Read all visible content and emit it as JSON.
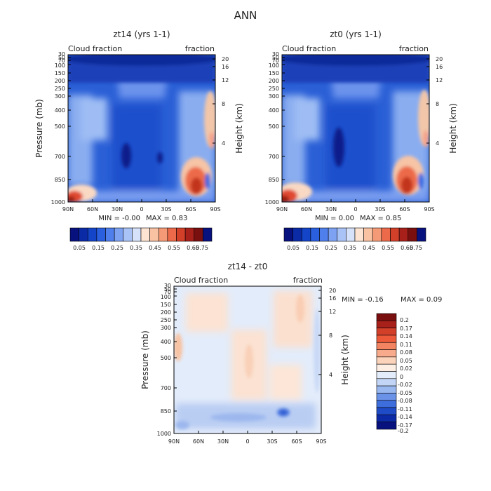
{
  "figure": {
    "title": "ANN"
  },
  "chart_data": [
    {
      "type": "heatmap",
      "title": "zt14 (yrs 1-1)",
      "left_label": "Cloud fraction",
      "right_label": "fraction",
      "ylabel": "Pressure (mb)",
      "y2label": "Height (km)",
      "x_ticks": [
        "90N",
        "60N",
        "30N",
        "0",
        "30S",
        "60S",
        "90S"
      ],
      "y_ticks": [
        "30",
        "50",
        "70",
        "100",
        "150",
        "200",
        "250",
        "300",
        "400",
        "500",
        "700",
        "850",
        "1000"
      ],
      "y2_ticks": [
        "20",
        "16",
        "12",
        "8",
        "4"
      ],
      "min_text": "MIN = -0.00",
      "max_text": "MAX = 0.83",
      "colorbar_labels": [
        "0.05",
        "0.15",
        "0.25",
        "0.35",
        "0.45",
        "0.55",
        "0.65",
        "0.75"
      ],
      "colorbar_levels": [
        0.05,
        0.1,
        0.15,
        0.2,
        0.25,
        0.3,
        0.35,
        0.4,
        0.45,
        0.5,
        0.55,
        0.6,
        0.65,
        0.7,
        0.75
      ]
    },
    {
      "type": "heatmap",
      "title": "zt0 (yrs 1-1)",
      "left_label": "Cloud fraction",
      "right_label": "fraction",
      "ylabel": "Pressure (mb)",
      "y2label": "Height (km)",
      "x_ticks": [
        "90N",
        "60N",
        "30N",
        "0",
        "30S",
        "60S",
        "90S"
      ],
      "y_ticks": [
        "30",
        "50",
        "70",
        "100",
        "150",
        "200",
        "250",
        "300",
        "400",
        "500",
        "700",
        "850",
        "1000"
      ],
      "y2_ticks": [
        "20",
        "16",
        "12",
        "8",
        "4"
      ],
      "min_text": "MIN = 0.00",
      "max_text": "MAX = 0.85",
      "colorbar_labels": [
        "0.05",
        "0.15",
        "0.25",
        "0.35",
        "0.45",
        "0.55",
        "0.65",
        "0.75"
      ],
      "colorbar_levels": [
        0.05,
        0.1,
        0.15,
        0.2,
        0.25,
        0.3,
        0.35,
        0.4,
        0.45,
        0.5,
        0.55,
        0.6,
        0.65,
        0.7,
        0.75
      ]
    },
    {
      "type": "heatmap",
      "title": "zt14 - zt0",
      "left_label": "Cloud fraction",
      "right_label": "fraction",
      "ylabel": "Pressure (mb)",
      "y2label": "Height (km)",
      "x_ticks": [
        "90N",
        "60N",
        "30N",
        "0",
        "30S",
        "60S",
        "90S"
      ],
      "y_ticks": [
        "30",
        "50",
        "70",
        "100",
        "150",
        "200",
        "250",
        "300",
        "400",
        "500",
        "700",
        "850",
        "1000"
      ],
      "y2_ticks": [
        "20",
        "16",
        "12",
        "8",
        "4"
      ],
      "min_text": "MIN = -0.16",
      "max_text": "MAX = 0.09",
      "colorbar_labels": [
        "0.2",
        "0.17",
        "0.14",
        "0.11",
        "0.08",
        "0.05",
        "0.02",
        "0",
        "-0.02",
        "-0.05",
        "-0.08",
        "-0.11",
        "-0.14",
        "-0.17",
        "-0.2"
      ]
    }
  ]
}
